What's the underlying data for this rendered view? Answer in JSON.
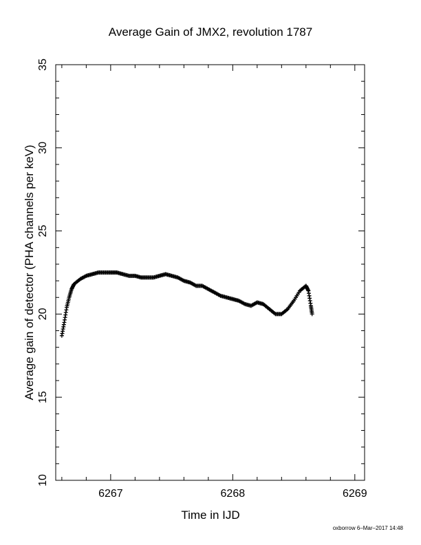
{
  "chart_data": {
    "type": "scatter",
    "title": "Average Gain of JMX2, revolution 1787",
    "xlabel": "Time in IJD",
    "ylabel": "Average gain of detector (PHA channels per keV)",
    "xlim": [
      6266.55,
      6269.08
    ],
    "ylim": [
      10,
      35
    ],
    "x_ticks": [
      6267,
      6268,
      6269
    ],
    "x_tick_labels": [
      "6267",
      "6268",
      "6269"
    ],
    "x_minor_step": 0.2,
    "y_ticks": [
      10,
      15,
      20,
      25,
      30,
      35
    ],
    "y_tick_labels": [
      "10",
      "15",
      "20",
      "25",
      "30",
      "35"
    ],
    "y_minor_step": 1,
    "grid": false,
    "marker": "+",
    "marker_color": "#000000",
    "footer": "oxborrow 6–Mar–2017 14:48",
    "series": [
      {
        "x": [
          6266.6,
          6266.62,
          6266.64,
          6266.66,
          6266.68,
          6266.7,
          6266.75,
          6266.8,
          6266.85,
          6266.9,
          6266.95,
          6267.0,
          6267.05,
          6267.1,
          6267.15,
          6267.2,
          6267.25,
          6267.3,
          6267.35,
          6267.4,
          6267.45,
          6267.5,
          6267.55,
          6267.6,
          6267.65,
          6267.7,
          6267.75,
          6267.8,
          6267.85,
          6267.9,
          6267.95,
          6268.0,
          6268.05,
          6268.1,
          6268.15,
          6268.2,
          6268.25,
          6268.3,
          6268.35,
          6268.4,
          6268.45,
          6268.5,
          6268.55,
          6268.6,
          6268.62,
          6268.64,
          6268.65
        ],
        "y": [
          18.7,
          19.5,
          20.4,
          21.0,
          21.5,
          21.8,
          22.1,
          22.3,
          22.4,
          22.5,
          22.5,
          22.5,
          22.5,
          22.4,
          22.3,
          22.3,
          22.2,
          22.2,
          22.2,
          22.3,
          22.4,
          22.3,
          22.2,
          22.0,
          21.9,
          21.7,
          21.7,
          21.5,
          21.3,
          21.1,
          21.0,
          20.9,
          20.8,
          20.6,
          20.5,
          20.7,
          20.6,
          20.3,
          20.0,
          20.0,
          20.3,
          20.8,
          21.4,
          21.7,
          21.4,
          20.5,
          20.0
        ]
      }
    ]
  }
}
